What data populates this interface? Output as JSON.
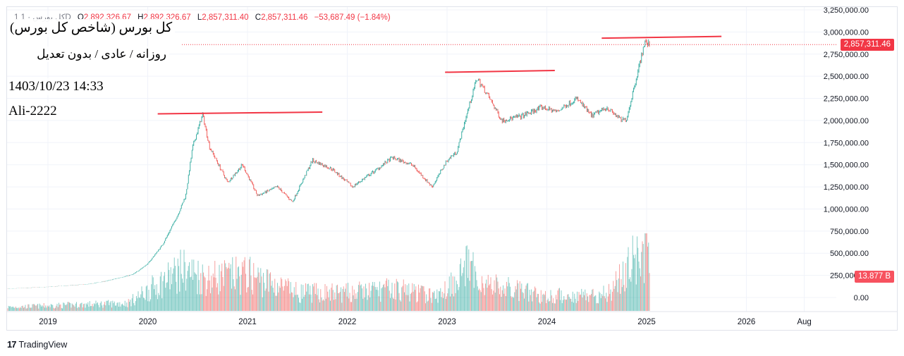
{
  "header": {
    "symbol": "1 كل بورس · 1D",
    "open_label": "O",
    "open": "2,892,326.67",
    "high_label": "H",
    "high": "2,892,326.67",
    "low_label": "L",
    "low": "2,857,311.40",
    "close_label": "C",
    "close": "2,857,311.46",
    "change": "−53,687.49 (−1.84%)"
  },
  "overlay": {
    "line1": "كل بورس (شاخص كل بورس)",
    "line2": "روزانه / عادى / بدون تعديل",
    "line3": "1403/10/23 14:33",
    "line4": "Ali-2222"
  },
  "badges": {
    "last_price": "2,857,311.46",
    "volume": "13.877 B"
  },
  "brand": {
    "logo": "17",
    "name": "TradingView"
  },
  "colors": {
    "up": "#26a69a",
    "down": "#ef5350",
    "badge": "#f23645",
    "trendline": "#f23645",
    "grid": "#f0f3fa",
    "axis_text": "#131722"
  },
  "chart_data": {
    "type": "candlestick",
    "timeframe": "1D",
    "x_ticks": [
      "2019",
      "2020",
      "2021",
      "2022",
      "2023",
      "2024",
      "2025",
      "2026",
      "Aug"
    ],
    "y_ticks": [
      "0.00",
      "250,000.00",
      "500,000.00",
      "750,000.00",
      "1,000,000.00",
      "1,250,000.00",
      "1,500,000.00",
      "1,750,000.00",
      "2,000,000.00",
      "2,250,000.00",
      "2,500,000.00",
      "2,750,000.00",
      "3,000,000.00",
      "3,250,000.00"
    ],
    "ylim": [
      0,
      3250000
    ],
    "xlim": [
      2018.6,
      2026.7
    ],
    "last_price": 2857311.46,
    "volume_last": "13.877 B",
    "price_path": [
      [
        2018.62,
        100000
      ],
      [
        2019.0,
        120000
      ],
      [
        2019.4,
        150000
      ],
      [
        2019.6,
        190000
      ],
      [
        2019.85,
        260000
      ],
      [
        2020.0,
        380000
      ],
      [
        2020.15,
        600000
      ],
      [
        2020.3,
        930000
      ],
      [
        2020.38,
        1150000
      ],
      [
        2020.45,
        1700000
      ],
      [
        2020.55,
        2070000
      ],
      [
        2020.62,
        1700000
      ],
      [
        2020.8,
        1300000
      ],
      [
        2020.95,
        1500000
      ],
      [
        2021.1,
        1150000
      ],
      [
        2021.3,
        1250000
      ],
      [
        2021.45,
        1080000
      ],
      [
        2021.65,
        1550000
      ],
      [
        2021.85,
        1450000
      ],
      [
        2022.05,
        1250000
      ],
      [
        2022.3,
        1450000
      ],
      [
        2022.45,
        1580000
      ],
      [
        2022.65,
        1500000
      ],
      [
        2022.85,
        1250000
      ],
      [
        2023.0,
        1550000
      ],
      [
        2023.1,
        1650000
      ],
      [
        2023.18,
        2000000
      ],
      [
        2023.3,
        2480000
      ],
      [
        2023.4,
        2300000
      ],
      [
        2023.55,
        2000000
      ],
      [
        2023.75,
        2050000
      ],
      [
        2023.95,
        2150000
      ],
      [
        2024.1,
        2100000
      ],
      [
        2024.3,
        2250000
      ],
      [
        2024.45,
        2050000
      ],
      [
        2024.6,
        2150000
      ],
      [
        2024.75,
        2000000
      ],
      [
        2024.8,
        2020000
      ],
      [
        2024.9,
        2500000
      ],
      [
        2024.98,
        2880000
      ],
      [
        2025.03,
        2857311
      ]
    ],
    "volume_path": [
      [
        2018.62,
        30000000
      ],
      [
        2019.8,
        60000000
      ],
      [
        2020.35,
        320000000
      ],
      [
        2020.6,
        250000000
      ],
      [
        2021.0,
        280000000
      ],
      [
        2021.5,
        140000000
      ],
      [
        2022.0,
        140000000
      ],
      [
        2022.5,
        170000000
      ],
      [
        2022.9,
        110000000
      ],
      [
        2023.2,
        340000000
      ],
      [
        2023.4,
        200000000
      ],
      [
        2024.0,
        110000000
      ],
      [
        2024.6,
        130000000
      ],
      [
        2024.95,
        460000000
      ],
      [
        2025.03,
        420000000
      ]
    ],
    "trendlines": [
      {
        "x1": 2020.1,
        "y1": 2075000,
        "x2": 2021.75,
        "y2": 2095000
      },
      {
        "x1": 2022.98,
        "y1": 2545000,
        "x2": 2024.08,
        "y2": 2565000
      },
      {
        "x1": 2024.55,
        "y1": 2930000,
        "x2": 2025.75,
        "y2": 2950000
      }
    ]
  }
}
